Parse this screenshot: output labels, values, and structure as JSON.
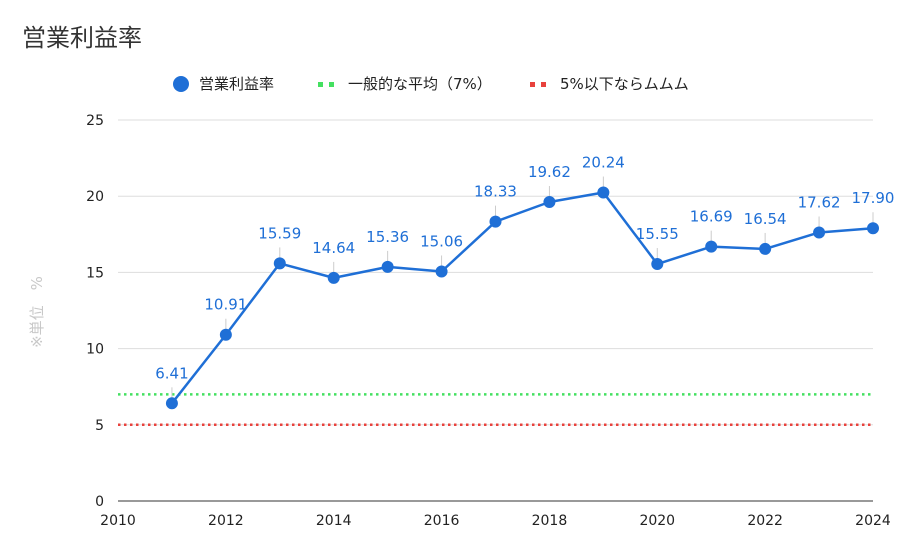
{
  "chart_data": {
    "type": "line",
    "title": "営業利益率",
    "ylabel": "※単位　%",
    "xlabel": "",
    "xlim": [
      2010,
      2024
    ],
    "ylim": [
      0,
      25
    ],
    "x_ticks": [
      2010,
      2012,
      2014,
      2016,
      2018,
      2020,
      2022,
      2024
    ],
    "y_ticks": [
      0,
      5,
      10,
      15,
      20,
      25
    ],
    "grid": true,
    "legend_position": "top",
    "series": [
      {
        "name": "営業利益率",
        "color": "#1f6fd6",
        "x": [
          2011,
          2012,
          2013,
          2014,
          2015,
          2016,
          2017,
          2018,
          2019,
          2020,
          2021,
          2022,
          2023,
          2024
        ],
        "values": [
          6.41,
          10.91,
          15.59,
          14.64,
          15.36,
          15.06,
          18.33,
          19.62,
          20.24,
          15.55,
          16.69,
          16.54,
          17.62,
          17.9
        ],
        "labels": [
          "6.41",
          "10.91",
          "15.59",
          "14.64",
          "15.36",
          "15.06",
          "18.33",
          "19.62",
          "20.24",
          "15.55",
          "16.69",
          "16.54",
          "17.62",
          "17.90"
        ]
      }
    ],
    "reference_lines": [
      {
        "name": "一般的な平均（7%）",
        "value": 7,
        "color": "#44e060",
        "style": "dotted"
      },
      {
        "name": "5%以下ならムムム",
        "value": 5,
        "color": "#e8413c",
        "style": "dotted"
      }
    ]
  }
}
